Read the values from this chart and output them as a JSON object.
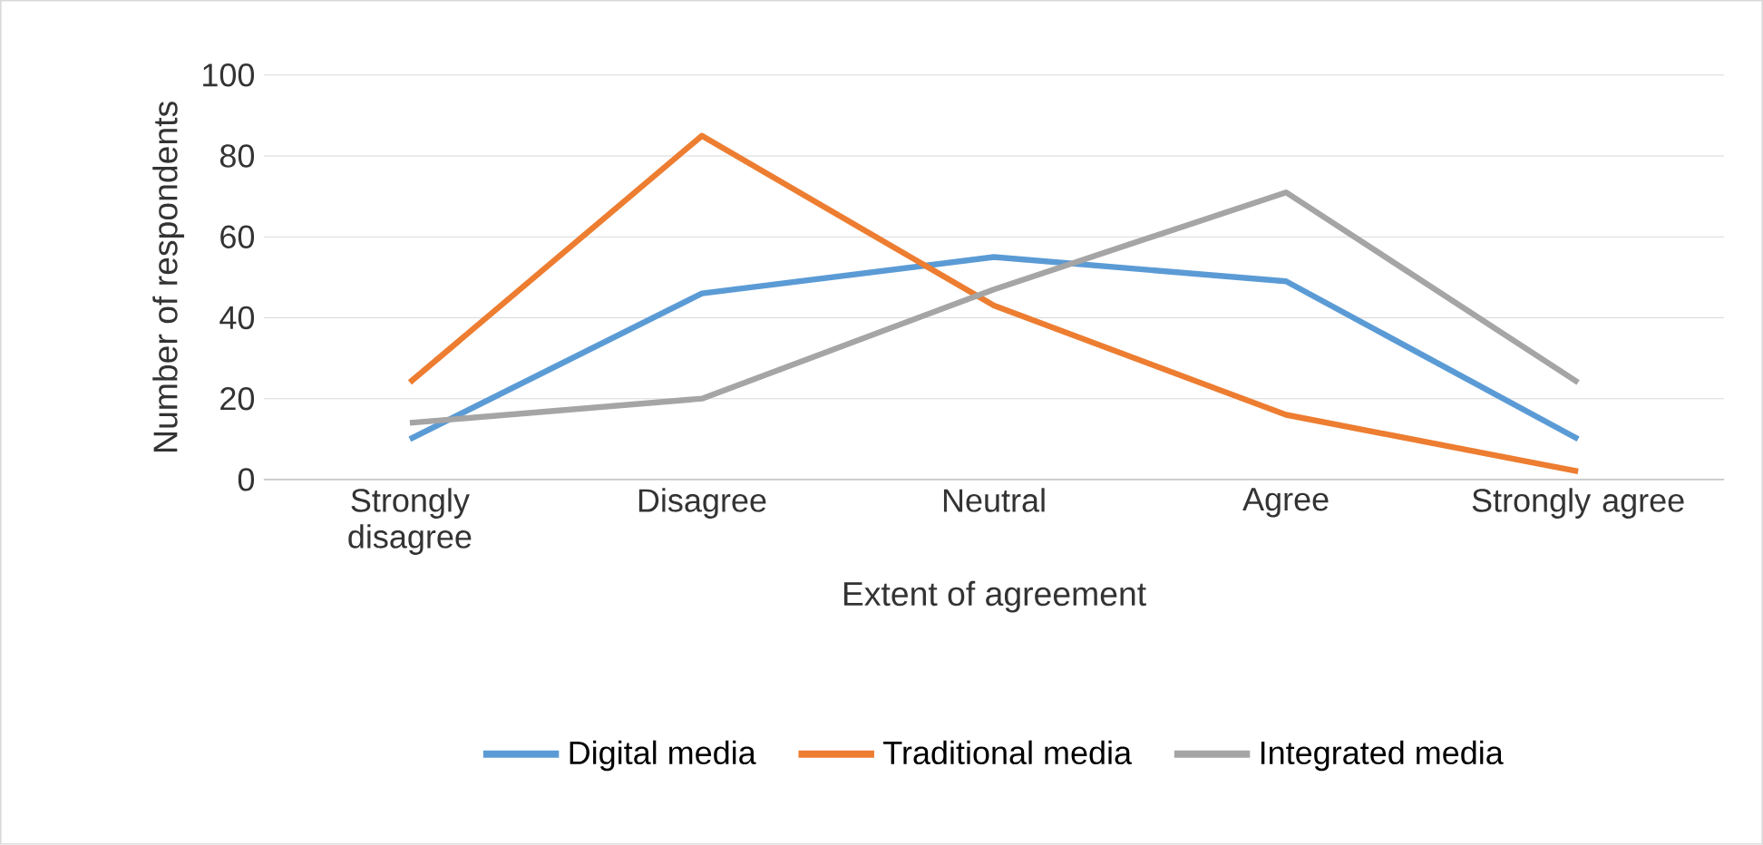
{
  "chart_data": {
    "type": "line",
    "xlabel": "Extent of agreement",
    "ylabel": "Number of respondents",
    "categories": [
      "Strongly disagree",
      "Disagree",
      "Neutral",
      "Agree",
      "Strongly agree"
    ],
    "series": [
      {
        "name": "Digital media",
        "color": "#5b9bd5",
        "values": [
          10,
          46,
          55,
          49,
          10
        ]
      },
      {
        "name": "Traditional media",
        "color": "#ed7d31",
        "values": [
          24,
          85,
          43,
          16,
          2
        ]
      },
      {
        "name": "Integrated media",
        "color": "#a5a5a5",
        "values": [
          14,
          20,
          47,
          71,
          24
        ]
      }
    ],
    "ylim": [
      0,
      100
    ],
    "yticks": [
      0,
      20,
      40,
      60,
      80,
      100
    ],
    "grid": "y",
    "legend": "bottom",
    "marker": "none",
    "line_style": "solid"
  }
}
